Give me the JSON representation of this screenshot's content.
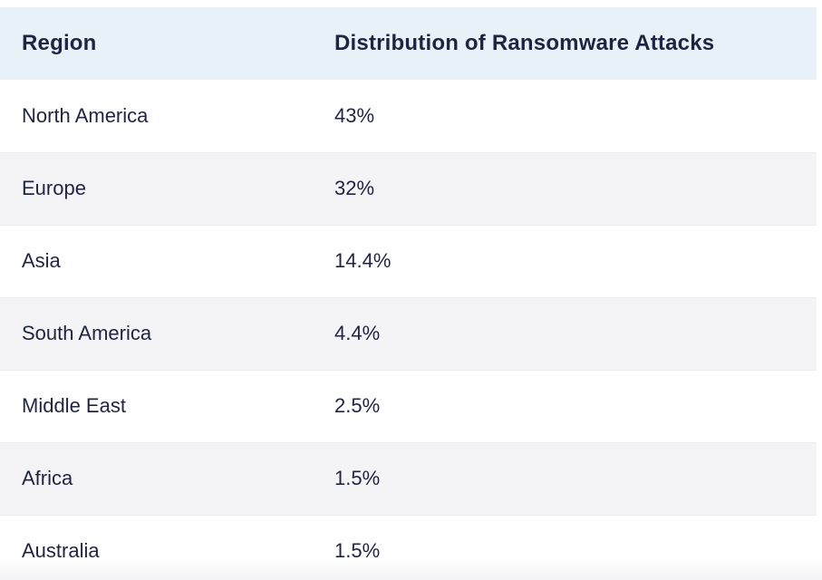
{
  "table": {
    "columns": [
      {
        "key": "region",
        "label": "Region"
      },
      {
        "key": "value",
        "label": "Distribution of Ransomware Attacks"
      }
    ],
    "rows": [
      {
        "region": "North America",
        "value": "43%"
      },
      {
        "region": "Europe",
        "value": "32%"
      },
      {
        "region": "Asia",
        "value": "14.4%"
      },
      {
        "region": "South America",
        "value": "4.4%"
      },
      {
        "region": "Middle East",
        "value": "2.5%"
      },
      {
        "region": "Africa",
        "value": "1.5%"
      },
      {
        "region": "Australia",
        "value": "1.5%"
      }
    ]
  },
  "colors": {
    "header_bg": "#e9f1f8",
    "stripe_bg": "#f4f4f6",
    "text": "#1f2443",
    "row_border": "#ebebf0"
  },
  "chart_data": {
    "type": "table",
    "title": "Distribution of Ransomware Attacks",
    "columns": [
      "Region",
      "Distribution of Ransomware Attacks"
    ],
    "categories": [
      "North America",
      "Europe",
      "Asia",
      "South America",
      "Middle East",
      "Africa",
      "Australia"
    ],
    "values": [
      43,
      32,
      14.4,
      4.4,
      2.5,
      1.5,
      1.5
    ],
    "value_unit": "%",
    "layout": {
      "header_background": "#e9f1f8",
      "zebra_striping": true,
      "first_data_row_background": "#ffffff"
    }
  }
}
